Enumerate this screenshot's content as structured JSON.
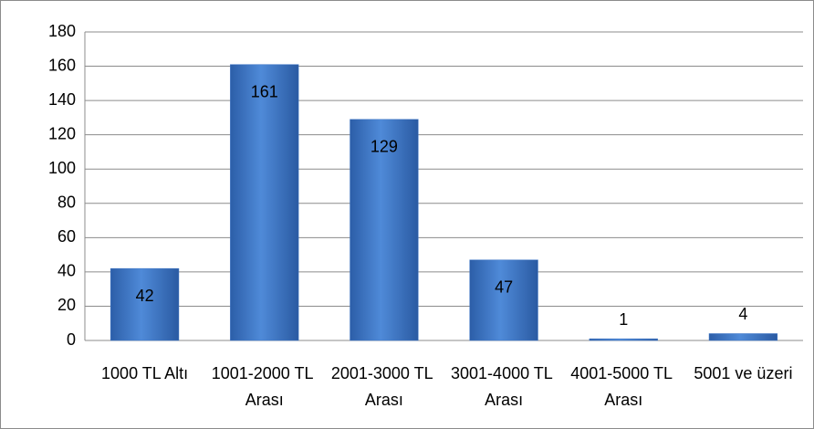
{
  "chart_data": {
    "type": "bar",
    "categories": [
      "1000 TL Altı",
      "1001-2000 TL Arası",
      "2001-3000 TL Arası",
      "3001-4000 TL Arası",
      "4001-5000 TL Arası",
      "5001 ve üzeri"
    ],
    "values": [
      42,
      161,
      129,
      47,
      1,
      4
    ],
    "color": "#3f76c6",
    "ylim": [
      0,
      180
    ],
    "yticks": [
      0,
      20,
      40,
      60,
      80,
      100,
      120,
      140,
      160,
      180
    ],
    "grid": true
  }
}
